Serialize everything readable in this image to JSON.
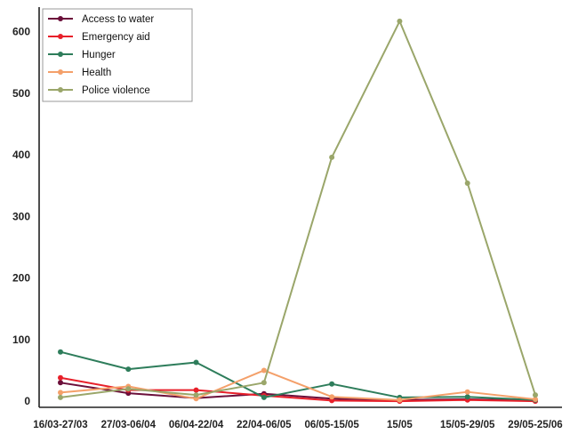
{
  "chart_data": {
    "type": "line",
    "title": "",
    "xlabel": "",
    "ylabel": "",
    "categories": [
      "16/03-27/03",
      "27/03-06/04",
      "06/04-22/04",
      "22/04-06/05",
      "06/05-15/05",
      "15/05",
      "15/05-29/05",
      "29/05-25/06"
    ],
    "ylim": [
      -10,
      640
    ],
    "yticks": [
      0,
      100,
      200,
      300,
      400,
      500,
      600
    ],
    "grid": false,
    "legend_position": "top-left",
    "series": [
      {
        "name": "Access to water",
        "color": "#6b0f3a",
        "values": [
          30,
          13,
          5,
          12,
          4,
          2,
          3,
          1
        ]
      },
      {
        "name": "Emergency aid",
        "color": "#e8202a",
        "values": [
          38,
          18,
          18,
          9,
          1,
          0,
          2,
          0
        ]
      },
      {
        "name": "Hunger",
        "color": "#2e7d5b",
        "values": [
          80,
          52,
          63,
          6,
          28,
          6,
          7,
          2
        ]
      },
      {
        "name": "Health",
        "color": "#f4a06a",
        "values": [
          14,
          24,
          4,
          50,
          7,
          2,
          15,
          3
        ]
      },
      {
        "name": "Police violence",
        "color": "#9aa66a",
        "values": [
          6,
          20,
          10,
          30,
          396,
          617,
          354,
          10
        ]
      }
    ]
  }
}
